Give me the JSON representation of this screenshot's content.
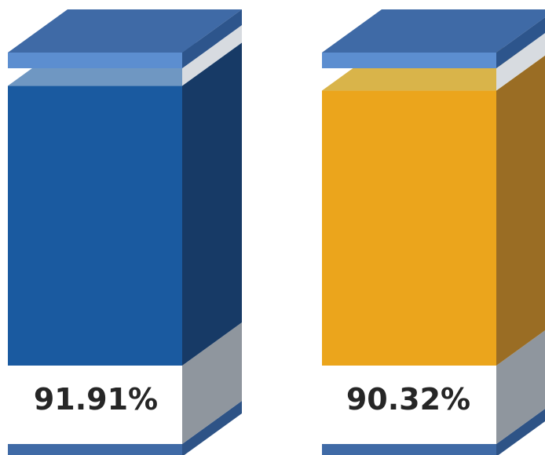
{
  "chart_data": {
    "type": "bar",
    "categories": [],
    "values": [
      91.91,
      90.32
    ],
    "ylim": [
      0,
      100
    ],
    "labels": [
      "91.91%",
      "90.32%"
    ],
    "colors": {
      "fill": [
        "#1a5aa0",
        "#eba51c"
      ],
      "fill_top": [
        "#6f97c2",
        "#d9b44a"
      ],
      "fill_side": [
        "#173a66",
        "#9a6d24"
      ],
      "lid": "#3f6aa6",
      "lid_edge": "#5c8ed0",
      "empty_side": "#8f969e",
      "base": "#3f6aa6"
    }
  }
}
